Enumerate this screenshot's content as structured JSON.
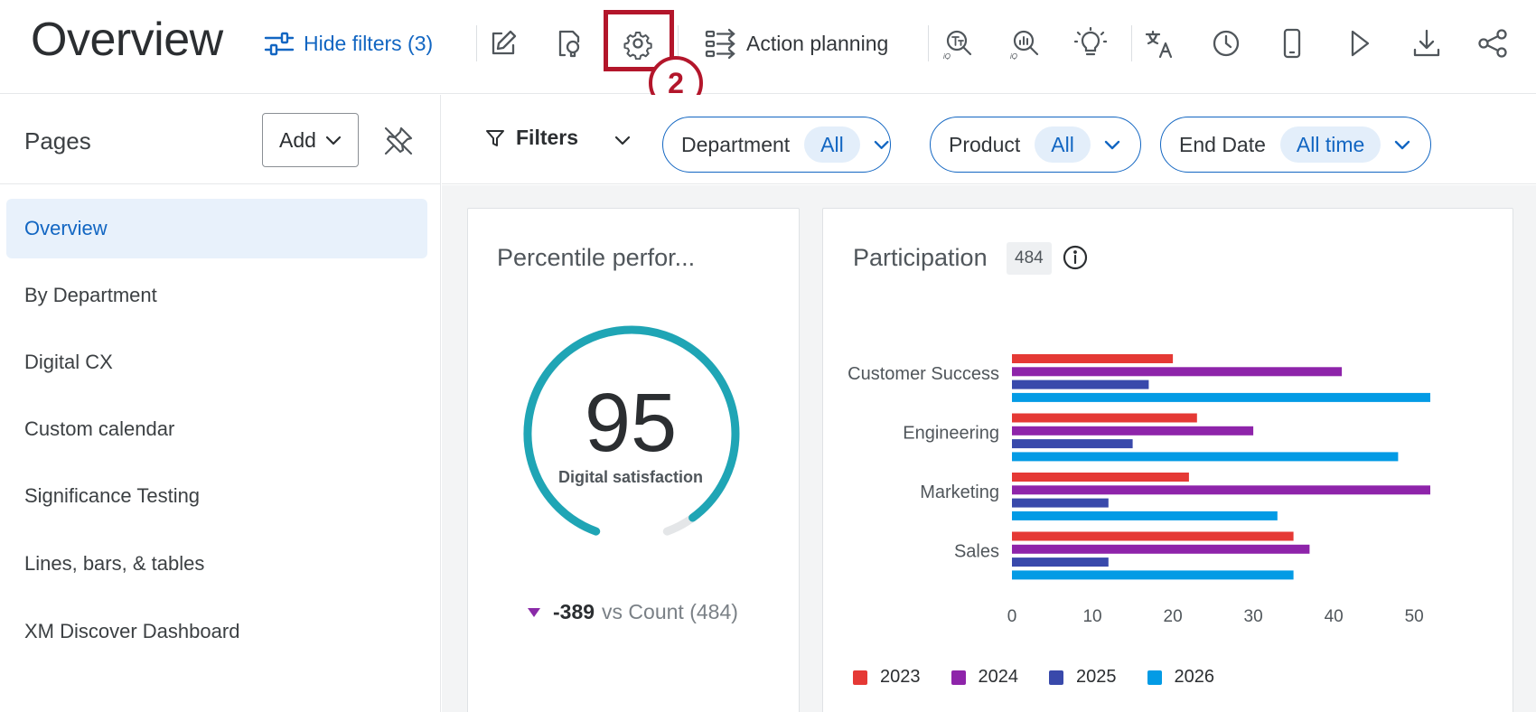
{
  "header": {
    "title": "Overview",
    "hide_filters_label": "Hide filters (3)",
    "action_planning_label": "Action planning",
    "callout_number": "2"
  },
  "toolbar_icons": [
    "edit-icon",
    "lightbulb-page-icon",
    "gear-icon",
    "action-planning-icon",
    "text-iq-icon",
    "stats-iq-icon",
    "lightbulb-icon",
    "translate-icon",
    "clock-icon",
    "mobile-icon",
    "play-icon",
    "download-icon",
    "share-icon"
  ],
  "sidebar": {
    "pages_label": "Pages",
    "add_label": "Add",
    "items": [
      {
        "label": "Overview",
        "active": true
      },
      {
        "label": "By Department"
      },
      {
        "label": "Digital CX"
      },
      {
        "label": "Custom calendar"
      },
      {
        "label": "Significance Testing"
      },
      {
        "label": "Lines, bars, & tables"
      },
      {
        "label": "XM Discover Dashboard"
      }
    ]
  },
  "filterbar": {
    "filters_label": "Filters",
    "chips": [
      {
        "label": "Department",
        "value": "All"
      },
      {
        "label": "Product",
        "value": "All"
      },
      {
        "label": "End Date",
        "value": "All time"
      }
    ]
  },
  "percentile_card": {
    "title": "Percentile perfor...",
    "value": "95",
    "value_fraction": 0.95,
    "metric_label": "Digital satisfaction",
    "delta": "-389",
    "delta_text": "vs Count (484)"
  },
  "participation_card": {
    "title": "Participation",
    "count_badge": "484"
  },
  "colors": {
    "accent": "#1266c2",
    "gauge": "#1fa5b5",
    "callout": "#b3162b"
  },
  "chart_data": {
    "type": "bar",
    "orientation": "horizontal",
    "categories": [
      "Customer Success",
      "Engineering",
      "Marketing",
      "Sales"
    ],
    "series": [
      {
        "name": "2023",
        "color": "#e53935",
        "values": [
          20,
          23,
          22,
          35
        ]
      },
      {
        "name": "2024",
        "color": "#8e24aa",
        "values": [
          41,
          30,
          52,
          37
        ]
      },
      {
        "name": "2025",
        "color": "#3949ab",
        "values": [
          17,
          15,
          12,
          12
        ]
      },
      {
        "name": "2026",
        "color": "#039be5",
        "values": [
          52,
          48,
          33,
          35
        ]
      }
    ],
    "xlim": [
      0,
      52
    ],
    "ticks": [
      "0",
      "10",
      "20",
      "30",
      "40",
      "50"
    ],
    "legend": "bottom",
    "grid": false
  }
}
